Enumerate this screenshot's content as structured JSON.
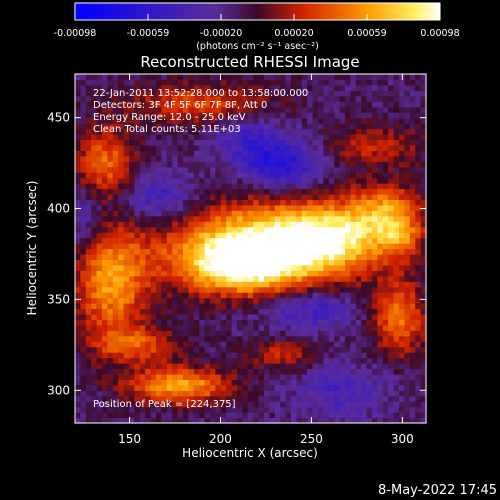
{
  "chart_data": {
    "type": "heatmap",
    "title": "Reconstructed RHESSI Image",
    "xlabel": "Heliocentric X (arcsec)",
    "ylabel": "Heliocentric Y (arcsec)",
    "xlim": [
      120,
      313
    ],
    "ylim": [
      282,
      474
    ],
    "xticks": [
      150,
      200,
      250,
      300
    ],
    "yticks": [
      300,
      350,
      400,
      450
    ],
    "colormap": "RHESSI blue-purple-red-yellow-white",
    "colorbar": {
      "ticks": [
        "-0.00098",
        "-0.00059",
        "-0.00020",
        "0.00020",
        "0.00059",
        "0.00098"
      ],
      "units_label": "(photons cm⁻² s⁻¹ asec⁻²)",
      "range": [
        -0.00098,
        0.00098
      ]
    },
    "annotations": [
      "22-Jan-2011 13:52:28.000 to 13:58:00.000",
      "Detectors: 3F 4F 5F 6F 7F 8F, Att 0",
      "Energy Range: 12.0 - 25.0 keV",
      "Clean     Total counts: 5.11E+03",
      "Position of Peak = [224,375]"
    ],
    "peak": [
      224,
      375
    ],
    "blobs": [
      {
        "x": 224,
        "y": 380,
        "sx": 38,
        "sy": 16,
        "amp": 1.0
      },
      {
        "x": 212,
        "y": 368,
        "sx": 22,
        "sy": 10,
        "amp": 0.7
      },
      {
        "x": 262,
        "y": 385,
        "sx": 24,
        "sy": 12,
        "amp": 0.65
      },
      {
        "x": 292,
        "y": 400,
        "sx": 14,
        "sy": 10,
        "amp": 0.55
      },
      {
        "x": 140,
        "y": 360,
        "sx": 14,
        "sy": 22,
        "amp": 0.7
      },
      {
        "x": 137,
        "y": 425,
        "sx": 12,
        "sy": 14,
        "amp": 0.55
      },
      {
        "x": 178,
        "y": 303,
        "sx": 20,
        "sy": 7,
        "amp": 0.75
      },
      {
        "x": 300,
        "y": 340,
        "sx": 10,
        "sy": 14,
        "amp": 0.6
      },
      {
        "x": 190,
        "y": 458,
        "sx": 28,
        "sy": 8,
        "amp": 0.45
      },
      {
        "x": 287,
        "y": 435,
        "sx": 20,
        "sy": 8,
        "amp": 0.35
      },
      {
        "x": 155,
        "y": 325,
        "sx": 16,
        "sy": 7,
        "amp": 0.45
      },
      {
        "x": 300,
        "y": 385,
        "sx": 8,
        "sy": 8,
        "amp": 0.4
      },
      {
        "x": 235,
        "y": 320,
        "sx": 12,
        "sy": 6,
        "amp": 0.35
      },
      {
        "x": 235,
        "y": 425,
        "sx": 15,
        "sy": 10,
        "amp": -0.55
      },
      {
        "x": 165,
        "y": 405,
        "sx": 16,
        "sy": 10,
        "amp": -0.4
      },
      {
        "x": 250,
        "y": 345,
        "sx": 18,
        "sy": 8,
        "amp": -0.4
      },
      {
        "x": 215,
        "y": 440,
        "sx": 14,
        "sy": 10,
        "amp": -0.3
      },
      {
        "x": 268,
        "y": 300,
        "sx": 18,
        "sy": 10,
        "amp": -0.3
      },
      {
        "x": 125,
        "y": 395,
        "sx": 8,
        "sy": 12,
        "amp": -0.3
      }
    ]
  },
  "footer": {
    "datestamp": "8-May-2022 17:45"
  }
}
